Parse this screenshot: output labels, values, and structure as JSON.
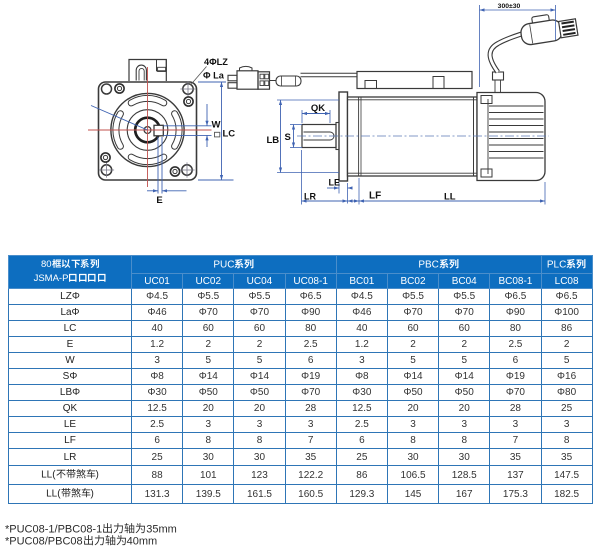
{
  "drawing": {
    "labels": {
      "holes": "4ΦLZ",
      "la": "Φ La",
      "w": "W",
      "lc": "LC",
      "e": "E",
      "qk": "QK",
      "s": "S",
      "lb": "LB",
      "le": "LE",
      "lr": "LR",
      "lf": "LF",
      "ll": "LL",
      "cable_length": "300±30"
    }
  },
  "table": {
    "corner_header_line1": "80框以下系列",
    "corner_header_line2": "JSMA-P口口口口",
    "groups": [
      {
        "label": "PUC系列",
        "span": 4
      },
      {
        "label": "PBC系列",
        "span": 4
      },
      {
        "label": "PLC系列",
        "span": 1
      }
    ],
    "columns": [
      "UC01",
      "UC02",
      "UC04",
      "UC08-1",
      "BC01",
      "BC02",
      "BC04",
      "BC08-1",
      "LC08"
    ],
    "bold_columns": [
      "UC08-1",
      "BC08-1",
      "LC08"
    ],
    "rows": [
      {
        "label": "LZΦ",
        "values": [
          "Φ4.5",
          "Φ5.5",
          "Φ5.5",
          "Φ6.5",
          "Φ4.5",
          "Φ5.5",
          "Φ5.5",
          "Φ6.5",
          "Φ6.5"
        ]
      },
      {
        "label": "LaΦ",
        "values": [
          "Φ46",
          "Φ70",
          "Φ70",
          "Φ90",
          "Φ46",
          "Φ70",
          "Φ70",
          "Φ90",
          "Φ100"
        ]
      },
      {
        "label": "LC",
        "values": [
          "40",
          "60",
          "60",
          "80",
          "40",
          "60",
          "60",
          "80",
          "86"
        ]
      },
      {
        "label": "E",
        "values": [
          "1.2",
          "2",
          "2",
          "2.5",
          "1.2",
          "2",
          "2",
          "2.5",
          "2"
        ]
      },
      {
        "label": "W",
        "values": [
          "3",
          "5",
          "5",
          "6",
          "3",
          "5",
          "5",
          "6",
          "5"
        ]
      },
      {
        "label": "SΦ",
        "values": [
          "Φ8",
          "Φ14",
          "Φ14",
          "Φ19",
          "Φ8",
          "Φ14",
          "Φ14",
          "Φ19",
          "Φ16"
        ]
      },
      {
        "label": "LBΦ",
        "values": [
          "Φ30",
          "Φ50",
          "Φ50",
          "Φ70",
          "Φ30",
          "Φ50",
          "Φ50",
          "Φ70",
          "Φ80"
        ]
      },
      {
        "label": "QK",
        "values": [
          "12.5",
          "20",
          "20",
          "28",
          "12.5",
          "20",
          "20",
          "28",
          "25"
        ]
      },
      {
        "label": "LE",
        "values": [
          "2.5",
          "3",
          "3",
          "3",
          "2.5",
          "3",
          "3",
          "3",
          "3"
        ]
      },
      {
        "label": "LF",
        "values": [
          "6",
          "8",
          "8",
          "7",
          "6",
          "8",
          "8",
          "7",
          "8"
        ]
      },
      {
        "label": "LR",
        "values": [
          "25",
          "30",
          "30",
          "35",
          "25",
          "30",
          "30",
          "35",
          "35"
        ]
      },
      {
        "label": "LL(不带煞车)",
        "values": [
          "88",
          "101",
          "123",
          "122.2",
          "86",
          "106.5",
          "128.5",
          "137",
          "147.5"
        ]
      },
      {
        "label": "LL(带煞车)",
        "values": [
          "131.3",
          "139.5",
          "161.5",
          "160.5",
          "129.3",
          "145",
          "167",
          "175.3",
          "182.5"
        ]
      }
    ]
  },
  "footnotes": [
    "*PUC08-1/PBC08-1出力轴为35mm",
    "*PUC08/PBC08出力轴为40mm"
  ],
  "colors": {
    "header_blue": "#0d6ec0",
    "grid_blue": "#2e75b6",
    "dimension_blue": "#3f63b2",
    "centerline_red": "#c0504d",
    "line_dark": "#3a3a3a"
  }
}
